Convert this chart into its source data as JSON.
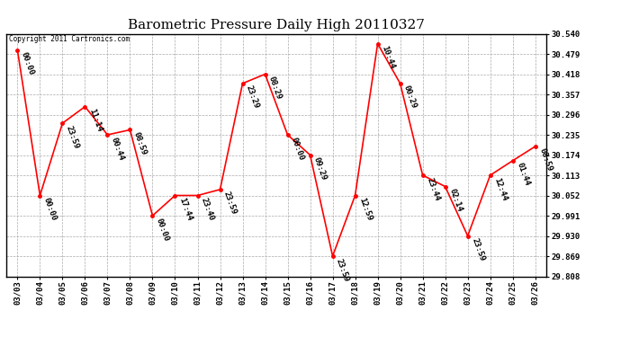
{
  "title": "Barometric Pressure Daily High 20110327",
  "copyright": "Copyright 2011 Cartronics.com",
  "x_labels": [
    "03/03",
    "03/04",
    "03/05",
    "03/06",
    "03/07",
    "03/08",
    "03/09",
    "03/10",
    "03/11",
    "03/12",
    "03/13",
    "03/14",
    "03/15",
    "03/16",
    "03/17",
    "03/18",
    "03/19",
    "03/20",
    "03/21",
    "03/22",
    "03/23",
    "03/24",
    "03/25",
    "03/26"
  ],
  "y_values": [
    30.49,
    30.052,
    30.27,
    30.32,
    30.235,
    30.25,
    29.991,
    30.052,
    30.052,
    30.07,
    30.39,
    30.418,
    30.235,
    30.174,
    29.869,
    30.052,
    30.51,
    30.39,
    30.113,
    30.079,
    29.93,
    30.113,
    30.157,
    30.2
  ],
  "time_labels": [
    "00:00",
    "00:00",
    "23:59",
    "11:14",
    "00:44",
    "08:59",
    "00:00",
    "17:44",
    "23:40",
    "23:59",
    "23:29",
    "08:29",
    "00:00",
    "09:29",
    "23:59",
    "12:59",
    "10:44",
    "00:29",
    "23:44",
    "02:14",
    "23:59",
    "12:44",
    "01:44",
    "08:59"
  ],
  "ylim_min": 29.808,
  "ylim_max": 30.54,
  "y_ticks": [
    29.808,
    29.869,
    29.93,
    29.991,
    30.052,
    30.113,
    30.174,
    30.235,
    30.296,
    30.357,
    30.418,
    30.479,
    30.54
  ],
  "line_color": "#ff0000",
  "marker_color": "#ff0000",
  "bg_color": "#ffffff",
  "grid_color": "#aaaaaa",
  "title_fontsize": 11,
  "tick_fontsize": 6.5,
  "annot_fontsize": 6.5
}
